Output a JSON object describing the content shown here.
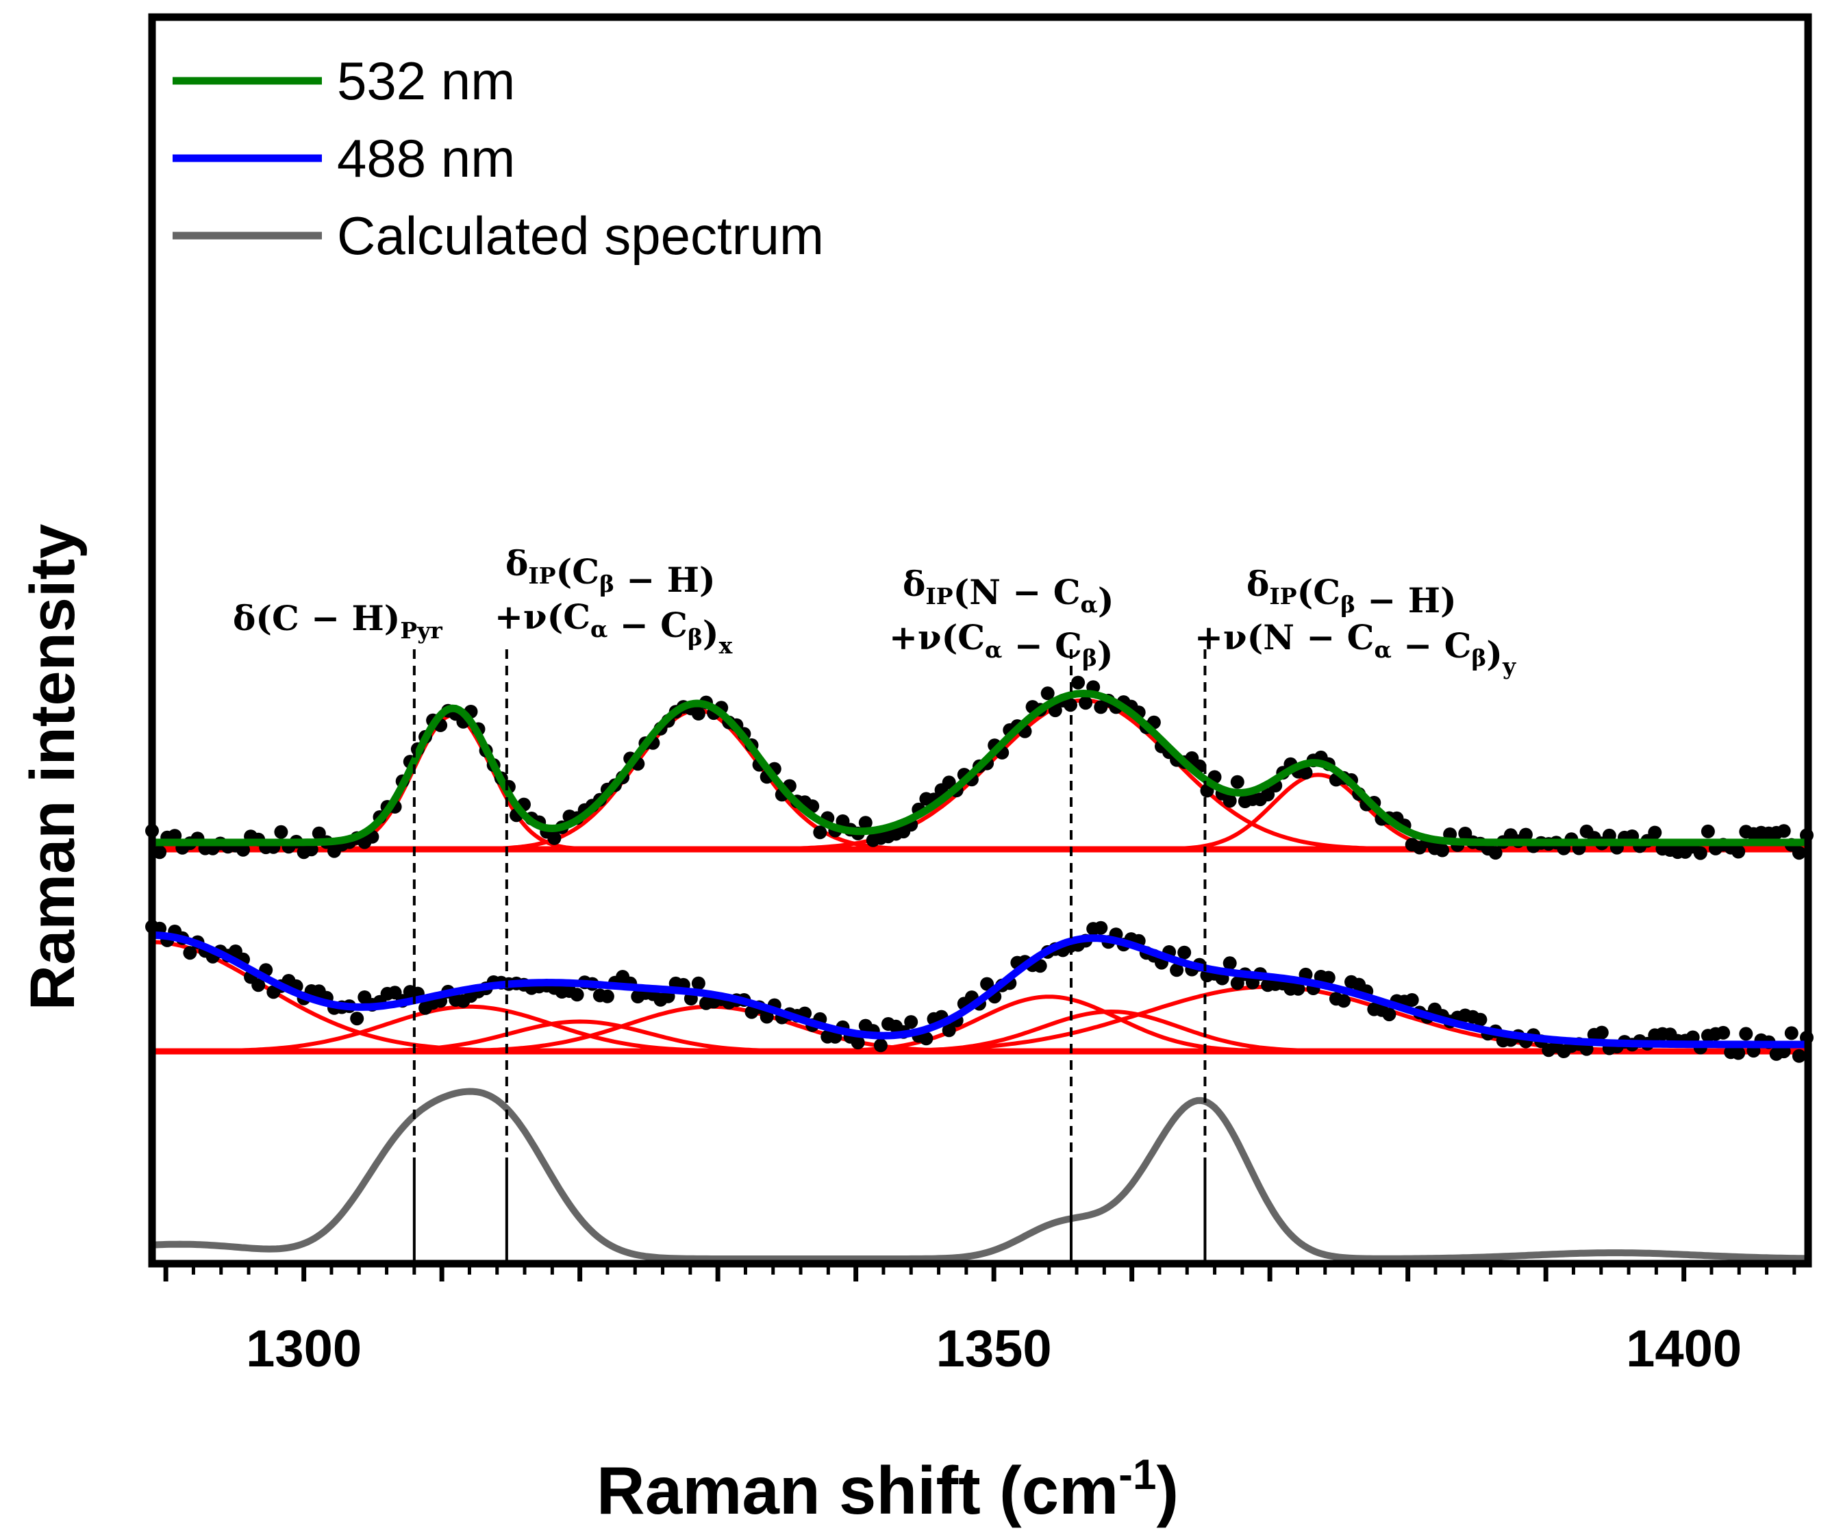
{
  "chart_data": {
    "type": "line",
    "title": "",
    "xlabel": "Raman shift (cm",
    "xlabel_superscript": "-1",
    "xlabel_close": ")",
    "ylabel": "Raman intensity",
    "xlim": [
      1289,
      1409
    ],
    "x_ticks": [
      1300,
      1350,
      1400
    ],
    "y_ticks_visible": false,
    "grid": false,
    "legend_position": "top-left",
    "legend": [
      {
        "label": "532 nm",
        "color": "#008000"
      },
      {
        "label": "488 nm",
        "color": "#0000ff"
      },
      {
        "label": "Calculated spectrum",
        "color": "#666666"
      }
    ],
    "series": [
      {
        "name": "532 nm",
        "color": "#008000",
        "baseline": 0,
        "fit_components": [
          {
            "center": 1310.8,
            "amplitude": 0.135,
            "width": 2.8
          },
          {
            "center": 1328.5,
            "amplitude": 0.14,
            "width": 4.5
          },
          {
            "center": 1356.5,
            "amplitude": 0.15,
            "width": 6.5
          },
          {
            "center": 1373.5,
            "amplitude": 0.075,
            "width": 3.3
          }
        ],
        "offset": 0.0
      },
      {
        "name": "488 nm",
        "color": "#0000ff",
        "baseline": 0,
        "fit_components": [
          {
            "center": 1289.0,
            "amplitude": 0.11,
            "width": 8.0
          },
          {
            "center": 1312.0,
            "amplitude": 0.045,
            "width": 6.0
          },
          {
            "center": 1320.0,
            "amplitude": 0.03,
            "width": 5.0
          },
          {
            "center": 1329.5,
            "amplitude": 0.045,
            "width": 6.0
          },
          {
            "center": 1354.0,
            "amplitude": 0.055,
            "width": 5.0
          },
          {
            "center": 1358.5,
            "amplitude": 0.04,
            "width": 5.0
          },
          {
            "center": 1370.0,
            "amplitude": 0.065,
            "width": 9.0
          }
        ],
        "offset": 0.0
      },
      {
        "name": "Calculated spectrum",
        "color": "#666666",
        "peaks": [
          {
            "center": 1291.0,
            "amplitude": 0.012,
            "width": 6.0
          },
          {
            "center": 1307.5,
            "amplitude": 0.085,
            "width": 3.5
          },
          {
            "center": 1314.0,
            "amplitude": 0.115,
            "width": 3.8
          },
          {
            "center": 1355.0,
            "amplitude": 0.028,
            "width": 3.0
          },
          {
            "center": 1361.5,
            "amplitude": 0.032,
            "width": 3.0
          },
          {
            "center": 1365.5,
            "amplitude": 0.115,
            "width": 3.2
          },
          {
            "center": 1395.0,
            "amplitude": 0.005,
            "width": 6.0
          }
        ]
      }
    ],
    "marker_lines": [
      {
        "x": 1308.0,
        "label": "δ(C − H)",
        "sub": "Pyr"
      },
      {
        "x": 1314.7,
        "label": "δ",
        "label_lines": [
          "δIP(Cβ − H)",
          "+ν(Cα − Cβ)x"
        ]
      },
      {
        "x": 1355.6,
        "label_lines": [
          "δIP(N − Cα)",
          "+ν(Cα − Cβ)"
        ]
      },
      {
        "x": 1365.3,
        "label_lines": [
          "δIP(Cβ − H)",
          "+ν(N − Cα − Cβ)y"
        ]
      }
    ],
    "annotations": [
      {
        "id": "a1",
        "main": "δ(C − H)",
        "sub": "Pyr"
      },
      {
        "id": "a2a",
        "main": "δ",
        "sub": "IP",
        "rest": "(C",
        "sub2": "β",
        "rest2": " − H)"
      },
      {
        "id": "a2b",
        "main": "+ν(C",
        "sub": "α",
        "rest": " − C",
        "sub2": "β",
        "rest2": ")",
        "sub3": "x"
      },
      {
        "id": "a3a",
        "main": "δ",
        "sub": "IP",
        "rest": "(N − C",
        "sub2": "α",
        "rest2": ")"
      },
      {
        "id": "a3b",
        "main": "+ν(C",
        "sub": "α",
        "rest": " − C",
        "sub2": "β",
        "rest2": ")"
      },
      {
        "id": "a4a",
        "main": "δ",
        "sub": "IP",
        "rest": "(C",
        "sub2": "β",
        "rest2": " − H)"
      },
      {
        "id": "a4b",
        "main": "+ν(N − C",
        "sub": "α",
        "rest": " − C",
        "sub2": "β",
        "rest2": ")",
        "sub3": "y"
      }
    ]
  }
}
